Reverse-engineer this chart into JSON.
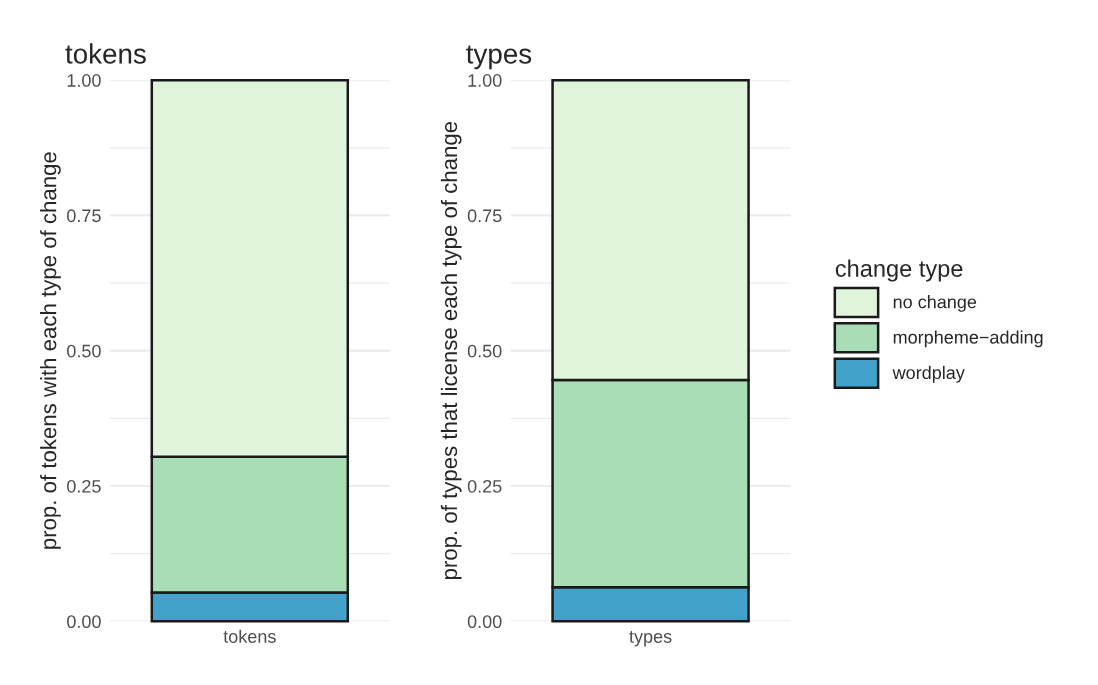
{
  "chart_data": [
    {
      "type": "bar",
      "title": "tokens",
      "ylabel": "prop. of tokens with each type of change",
      "categories": [
        "tokens"
      ],
      "stacked": true,
      "ylim": [
        0,
        1
      ],
      "yticks": [
        {
          "value": 0,
          "label": "0.00"
        },
        {
          "value": 0.25,
          "label": "0.25"
        },
        {
          "value": 0.5,
          "label": "0.50"
        },
        {
          "value": 0.75,
          "label": "0.75"
        },
        {
          "value": 1,
          "label": "1.00"
        }
      ],
      "grid": true,
      "series": [
        {
          "color": "#43a2ca",
          "values": [
            0.053
          ]
        },
        {
          "color": "#a8ddb5",
          "values": [
            0.251
          ]
        },
        {
          "color": "#e0f3db",
          "values": [
            0.696
          ]
        }
      ]
    },
    {
      "type": "bar",
      "title": "types",
      "ylabel": "prop. of types that license each type of change",
      "categories": [
        "types"
      ],
      "stacked": true,
      "ylim": [
        0,
        1
      ],
      "yticks": [
        {
          "value": 0,
          "label": "0.00"
        },
        {
          "value": 0.25,
          "label": "0.25"
        },
        {
          "value": 0.5,
          "label": "0.50"
        },
        {
          "value": 0.75,
          "label": "0.75"
        },
        {
          "value": 1,
          "label": "1.00"
        }
      ],
      "grid": true,
      "legend": "right",
      "legend_title": "change type",
      "series": [
        {
          "name": "wordplay",
          "color": "#43a2ca",
          "values": [
            0.063
          ]
        },
        {
          "name": "morpheme−adding",
          "color": "#a8ddb5",
          "values": [
            0.383
          ]
        },
        {
          "name": "no change",
          "color": "#e0f3db",
          "values": [
            0.554
          ]
        }
      ]
    }
  ]
}
